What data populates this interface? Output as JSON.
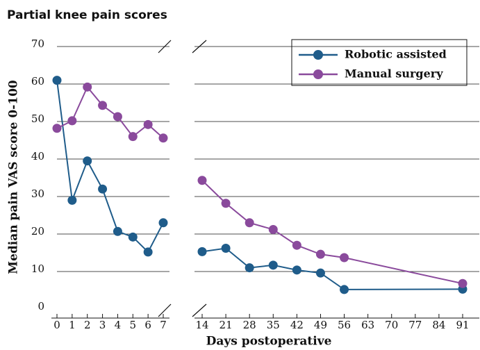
{
  "chart_data": {
    "type": "line",
    "title": "Partial knee pain scores",
    "xlabel": "Days postoperative",
    "ylabel": "Median pain VAS score 0-100",
    "x": [
      0,
      1,
      2,
      3,
      4,
      5,
      6,
      7,
      14,
      21,
      28,
      35,
      42,
      49,
      56,
      91
    ],
    "series": [
      {
        "name": "Robotic assisted",
        "color": "#1f5c8a",
        "values": [
          61,
          29,
          39.5,
          32,
          20.7,
          19.2,
          15.2,
          23,
          15.3,
          16.2,
          11,
          11.7,
          10.4,
          9.6,
          5.2,
          5.3
        ]
      },
      {
        "name": "Manual surgery",
        "color": "#8a4a9c",
        "values": [
          48.2,
          50.2,
          59.2,
          54.3,
          51.3,
          46,
          49.2,
          45.6,
          34.3,
          28.2,
          23,
          21.2,
          17,
          14.6,
          13.7,
          6.8
        ]
      }
    ],
    "xlim": [
      0,
      91
    ],
    "xticks": [
      0,
      1,
      2,
      3,
      4,
      5,
      6,
      7,
      14,
      21,
      28,
      35,
      42,
      49,
      56,
      63,
      70,
      77,
      84,
      91
    ],
    "ylim": [
      0,
      70
    ],
    "yticks": [
      0,
      10,
      20,
      30,
      40,
      50,
      60,
      70
    ],
    "grid": true,
    "legend": "upper right"
  }
}
